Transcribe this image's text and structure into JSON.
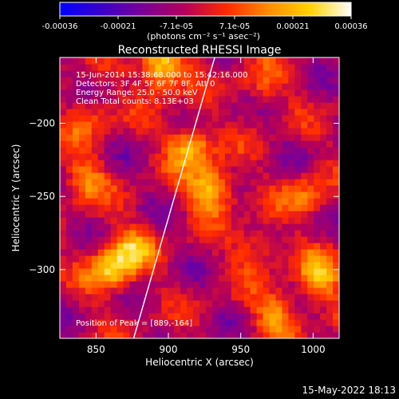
{
  "chart_data": {
    "type": "heatmap",
    "title": "Reconstructed RHESSI Image",
    "xlabel": "Heliocentric X (arcsec)",
    "ylabel": "Heliocentric Y (arcsec)",
    "xlim": [
      825,
      1018
    ],
    "ylim": [
      -347,
      -155
    ],
    "x_ticks": [
      850,
      900,
      950,
      1000
    ],
    "y_ticks": [
      -200,
      -250,
      -300
    ],
    "colorbar": {
      "units": "(photons cm⁻² s⁻¹ asec⁻²)",
      "range": [
        -0.00036,
        0.00036
      ],
      "ticks": [
        "-0.00036",
        "-0.00021",
        "-7.1e-05",
        "7.1e-05",
        "0.00021",
        "0.00036"
      ],
      "colormap": [
        "#0000ff",
        "#3a00c8",
        "#7a0096",
        "#b4005a",
        "#ff2a00",
        "#ff8c00",
        "#ffd200",
        "#ffffff"
      ]
    },
    "annotations": [
      "15-Jun-2014 15:38:68.000 to 15:42:16.000",
      "Detectors: 3F 4F 5F 6F 7F 8F, Att 0",
      "Energy Range: 25.0 - 50.0 keV",
      "Clean     Total counts: 8.13E+03"
    ],
    "peak_label": "Position of Peak = [889,-164]",
    "limb_line": [
      [
        876,
        -347
      ],
      [
        932,
        -155
      ]
    ],
    "sources": [
      {
        "x": 895,
        "y": -162,
        "value": 0.00036
      },
      {
        "x": 930,
        "y": -245,
        "value": 0.00032
      },
      {
        "x": 915,
        "y": -215,
        "value": 0.00028
      },
      {
        "x": 860,
        "y": -300,
        "value": 0.0003
      },
      {
        "x": 875,
        "y": -285,
        "value": 0.00022
      },
      {
        "x": 995,
        "y": -250,
        "value": 0.00018
      },
      {
        "x": 1005,
        "y": -305,
        "value": 0.00026
      },
      {
        "x": 975,
        "y": -330,
        "value": 0.00022
      },
      {
        "x": 842,
        "y": -238,
        "value": 0.0002
      },
      {
        "x": 845,
        "y": -195,
        "value": 0.00015
      },
      {
        "x": 965,
        "y": -175,
        "value": 0.00014
      },
      {
        "x": 960,
        "y": -285,
        "value": 0.00016
      }
    ]
  },
  "footer_date": "15-May-2022 18:13"
}
